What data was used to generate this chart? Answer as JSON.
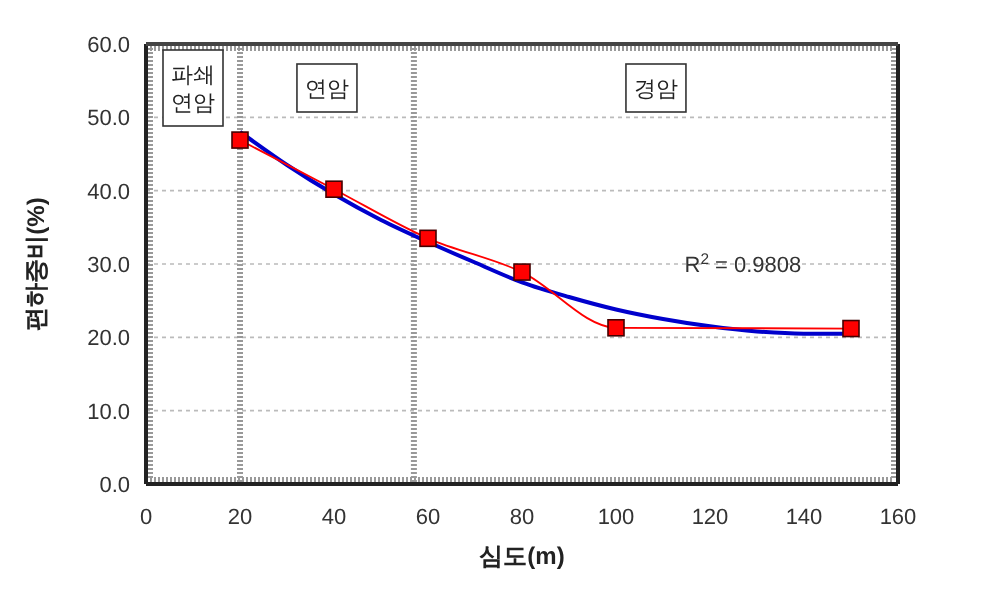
{
  "chart_data": {
    "type": "line",
    "xlabel": "심도(m)",
    "ylabel": "편하중비(%)",
    "xlim": [
      0,
      160
    ],
    "xticks": [
      0,
      20,
      40,
      60,
      80,
      100,
      120,
      140,
      160
    ],
    "ylim": [
      0,
      60
    ],
    "yticks": [
      {
        "value": 0,
        "label": "0.0"
      },
      {
        "value": 10,
        "label": "10.0"
      },
      {
        "value": 20,
        "label": "20.0"
      },
      {
        "value": 30,
        "label": "30.0"
      },
      {
        "value": 40,
        "label": "40.0"
      },
      {
        "value": 50,
        "label": "50.0"
      },
      {
        "value": 60,
        "label": "60.0"
      }
    ],
    "grid": "y",
    "series": [
      {
        "color": "#0000cc",
        "marker": "none",
        "x": [
          20,
          30,
          40,
          50,
          60,
          70,
          80,
          90,
          100,
          110,
          120,
          130,
          140,
          150
        ],
        "values": [
          48,
          43.5,
          39.5,
          36,
          33,
          30.2,
          27.5,
          25.5,
          23.8,
          22.5,
          21.5,
          20.8,
          20.5,
          20.5
        ]
      },
      {
        "color": "#ff0000",
        "marker": "square",
        "x": [
          20,
          40,
          60,
          80,
          100,
          150
        ],
        "values": [
          46.9,
          40.2,
          33.5,
          28.9,
          21.3,
          21.2
        ]
      }
    ],
    "ref_lines": [
      {
        "axis": "x",
        "value": 20,
        "color": "#999999",
        "line_style": "dotted"
      },
      {
        "axis": "x",
        "value": 57,
        "color": "#999999",
        "line_style": "dotted"
      }
    ],
    "annotations": [
      {
        "text": "파쇄\n연암",
        "x": 10,
        "y": 54
      },
      {
        "text": "연암",
        "x": 38.5,
        "y": 54
      },
      {
        "text": "경암",
        "x": 108.5,
        "y": 54
      },
      "R$^{2}$ = 0.9808"
    ]
  }
}
